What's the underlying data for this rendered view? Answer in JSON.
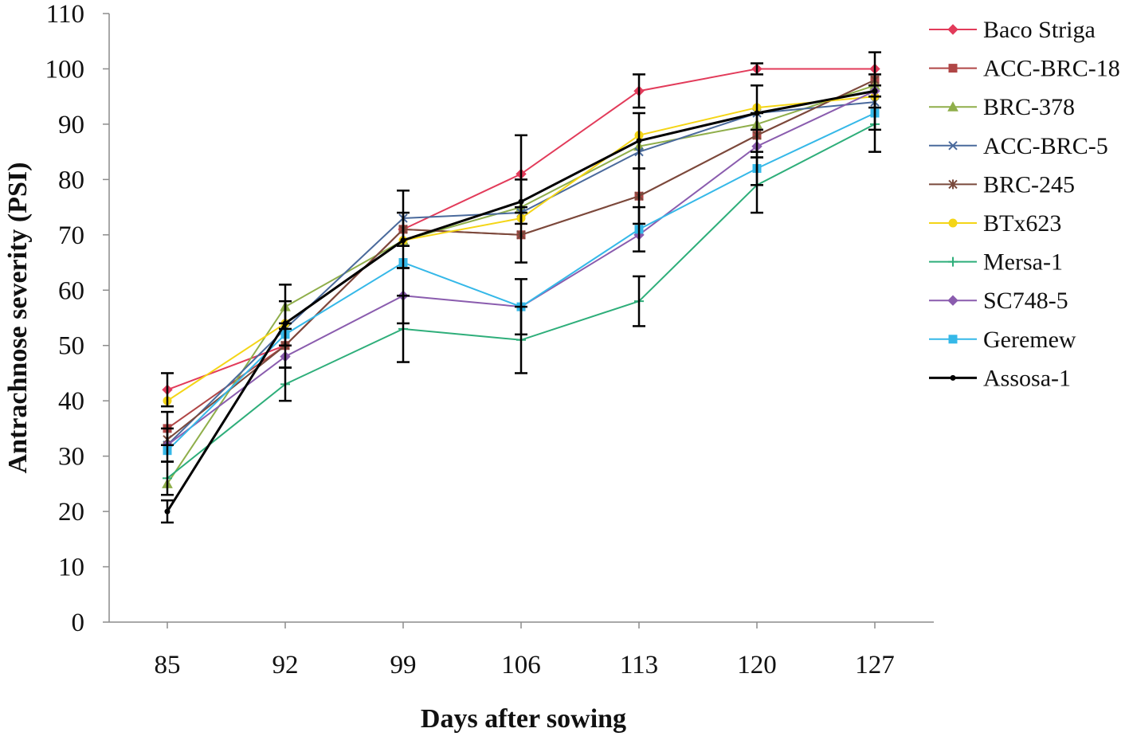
{
  "chart_data": {
    "type": "line",
    "xlabel": "Days after sowing",
    "ylabel": "Antrachnose severity (PSI)",
    "ylim": [
      0,
      110
    ],
    "yticks": [
      "0",
      "10",
      "20",
      "30",
      "40",
      "50",
      "60",
      "70",
      "80",
      "90",
      "100",
      "110"
    ],
    "categories": [
      "85",
      "92",
      "99",
      "106",
      "113",
      "120",
      "127"
    ],
    "grid": false,
    "legend_position": "right",
    "series": [
      {
        "name": "Baco Striga",
        "color": "#e23b5a",
        "marker": "diamond",
        "values": [
          42,
          50,
          71,
          81,
          96,
          100,
          100
        ]
      },
      {
        "name": "ACC-BRC-18",
        "color": "#b04646",
        "marker": "square",
        "values": [
          35,
          50,
          71,
          70,
          77,
          88,
          98
        ]
      },
      {
        "name": "BRC-378",
        "color": "#8fae4a",
        "marker": "triangle",
        "values": [
          25,
          57,
          69,
          75,
          86,
          90,
          97
        ]
      },
      {
        "name": "ACC-BRC-5",
        "color": "#4a6a9c",
        "marker": "x",
        "values": [
          32,
          53,
          73,
          74,
          85,
          92,
          94
        ]
      },
      {
        "name": "BRC-245",
        "color": "#7a4a3c",
        "marker": "star",
        "values": [
          33,
          50,
          71,
          70,
          77,
          88,
          98
        ]
      },
      {
        "name": "BTx623",
        "color": "#f4d516",
        "marker": "circle",
        "values": [
          40,
          54,
          69,
          73,
          88,
          93,
          95
        ]
      },
      {
        "name": "Mersa-1",
        "color": "#2eae7a",
        "marker": "plus",
        "values": [
          26,
          43,
          53,
          51,
          58,
          79,
          90
        ]
      },
      {
        "name": "SC748-5",
        "color": "#8a5cae",
        "marker": "diamond",
        "values": [
          32,
          48,
          59,
          57,
          70,
          86,
          96
        ]
      },
      {
        "name": "Geremew",
        "color": "#35b8e8",
        "marker": "square",
        "values": [
          31,
          52,
          65,
          57,
          71,
          82,
          92
        ]
      },
      {
        "name": "Assosa-1",
        "color": "#000000",
        "marker": "dot",
        "values": [
          20,
          54,
          69,
          76,
          87,
          92,
          96
        ]
      }
    ],
    "error_bars": [
      {
        "x": "85",
        "y": 42,
        "err": 3
      },
      {
        "x": "85",
        "y": 35,
        "err": 3
      },
      {
        "x": "85",
        "y": 32,
        "err": 3
      },
      {
        "x": "85",
        "y": 26,
        "err": 3
      },
      {
        "x": "85",
        "y": 20,
        "err": 2
      },
      {
        "x": "92",
        "y": 57,
        "err": 4
      },
      {
        "x": "92",
        "y": 54,
        "err": 4
      },
      {
        "x": "92",
        "y": 50,
        "err": 4
      },
      {
        "x": "92",
        "y": 43,
        "err": 3
      },
      {
        "x": "99",
        "y": 73,
        "err": 5
      },
      {
        "x": "99",
        "y": 69,
        "err": 5
      },
      {
        "x": "99",
        "y": 59,
        "err": 5
      },
      {
        "x": "99",
        "y": 53,
        "err": 6
      },
      {
        "x": "106",
        "y": 81,
        "err": 7
      },
      {
        "x": "106",
        "y": 76,
        "err": 4
      },
      {
        "x": "106",
        "y": 70,
        "err": 5
      },
      {
        "x": "106",
        "y": 57,
        "err": 5
      },
      {
        "x": "106",
        "y": 51,
        "err": 6
      },
      {
        "x": "113",
        "y": 96,
        "err": 3
      },
      {
        "x": "113",
        "y": 87,
        "err": 5
      },
      {
        "x": "113",
        "y": 77,
        "err": 5
      },
      {
        "x": "113",
        "y": 71,
        "err": 4
      },
      {
        "x": "113",
        "y": 58,
        "err": 4.5
      },
      {
        "x": "120",
        "y": 100,
        "err": 1
      },
      {
        "x": "120",
        "y": 93,
        "err": 4
      },
      {
        "x": "120",
        "y": 88,
        "err": 4
      },
      {
        "x": "120",
        "y": 82,
        "err": 3
      },
      {
        "x": "120",
        "y": 79,
        "err": 5
      },
      {
        "x": "127",
        "y": 100,
        "err": 3
      },
      {
        "x": "127",
        "y": 96,
        "err": 3
      },
      {
        "x": "127",
        "y": 92,
        "err": 3
      },
      {
        "x": "127",
        "y": 90,
        "err": 5
      }
    ]
  }
}
